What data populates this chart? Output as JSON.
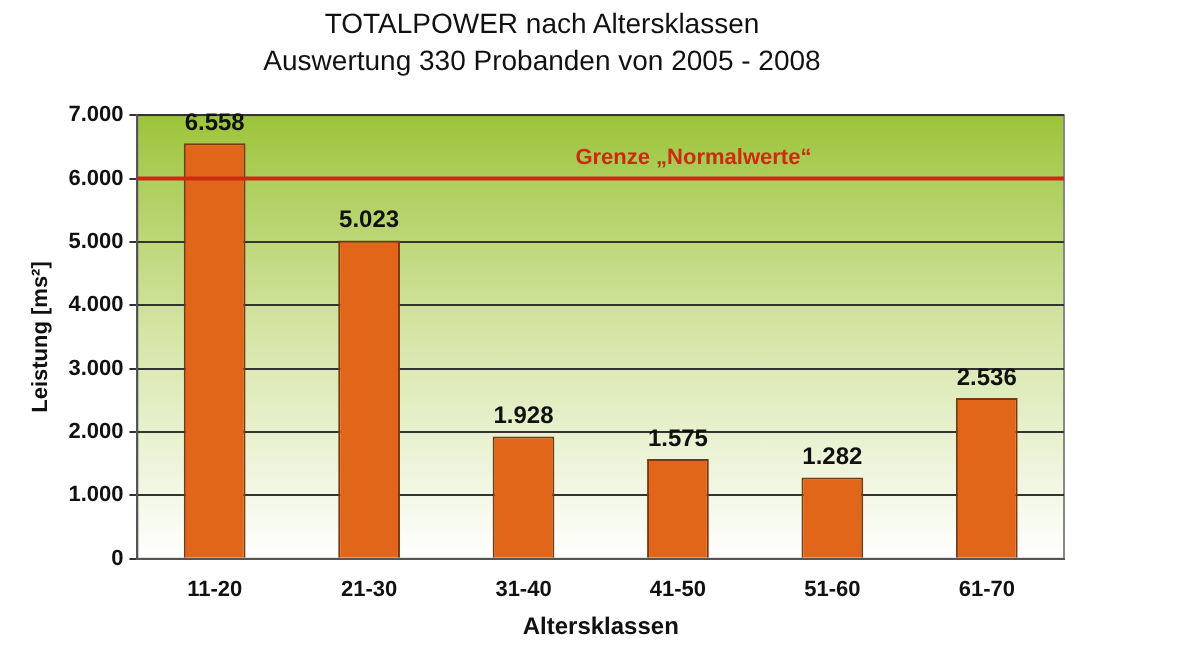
{
  "chart_data": {
    "type": "bar",
    "title": "TOTALPOWER nach Altersklassen",
    "subtitle": "Auswertung 330 Probanden von 2005 - 2008",
    "xlabel": "Altersklassen",
    "ylabel": "Leistung [ms²]",
    "categories": [
      "11-20",
      "21-30",
      "31-40",
      "41-50",
      "51-60",
      "61-70"
    ],
    "values": [
      6558,
      5023,
      1928,
      1575,
      1282,
      2536
    ],
    "value_labels": [
      "6.558",
      "5.023",
      "1.928",
      "1.575",
      "1.282",
      "2.536"
    ],
    "color": "#e2661a",
    "ylim": [
      0,
      7000
    ],
    "yticks": [
      {
        "value": 0,
        "label": "0"
      },
      {
        "value": 1000,
        "label": "1.000"
      },
      {
        "value": 2000,
        "label": "2.000"
      },
      {
        "value": 3000,
        "label": "3.000"
      },
      {
        "value": 4000,
        "label": "4.000"
      },
      {
        "value": 5000,
        "label": "5.000"
      },
      {
        "value": 6000,
        "label": "6.000"
      },
      {
        "value": 7000,
        "label": "7.000"
      }
    ],
    "grid": "y",
    "ref_lines": [
      {
        "axis": "y",
        "value": 6000,
        "label": "Grenze „Normalwerte“",
        "color": "#cc2a12"
      }
    ]
  }
}
